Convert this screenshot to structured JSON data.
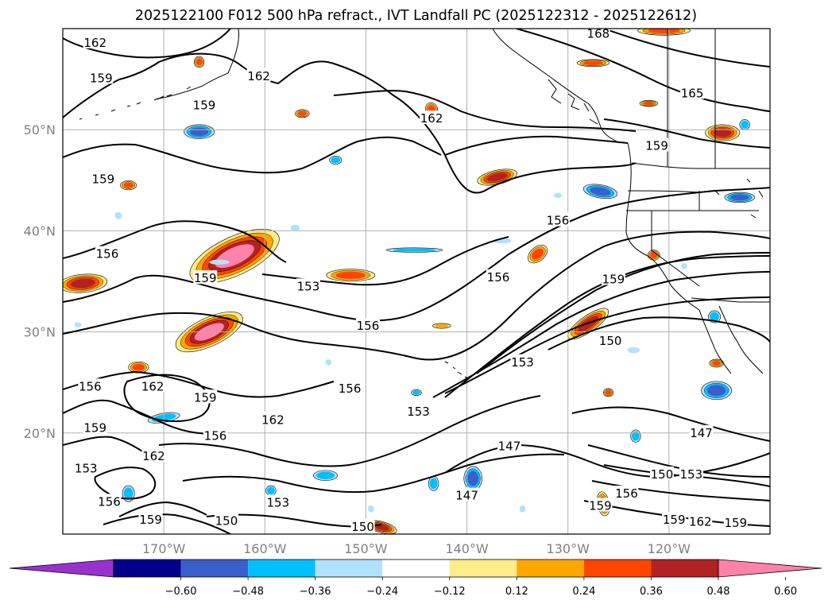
{
  "title": "2025122100 F012 500 hPa refract., IVT Landfall PC (2025122312 - 2025122612)",
  "map": {
    "lon_range": [
      -180,
      -110
    ],
    "lat_range": [
      10,
      60
    ],
    "gridline_color": "#b0b0b0",
    "lat_ticks": [
      {
        "value": 20,
        "label": "20°N"
      },
      {
        "value": 30,
        "label": "30°N"
      },
      {
        "value": 40,
        "label": "40°N"
      },
      {
        "value": 50,
        "label": "50°N"
      }
    ],
    "lon_ticks": [
      {
        "value": -170,
        "label": "170°W"
      },
      {
        "value": -160,
        "label": "160°W"
      },
      {
        "value": -150,
        "label": "150°W"
      },
      {
        "value": -140,
        "label": "140°W"
      },
      {
        "value": -130,
        "label": "130°W"
      },
      {
        "value": -120,
        "label": "120°W"
      }
    ],
    "contour_labels": [
      {
        "text": "162",
        "lon": -176.8,
        "lat": 58.6
      },
      {
        "text": "159",
        "lon": -176.2,
        "lat": 55.1
      },
      {
        "text": "159",
        "lon": -166.0,
        "lat": 52.4
      },
      {
        "text": "159",
        "lon": -176.0,
        "lat": 45.1
      },
      {
        "text": "156",
        "lon": -175.6,
        "lat": 37.7
      },
      {
        "text": "159",
        "lon": -165.9,
        "lat": 35.3
      },
      {
        "text": "153",
        "lon": -155.7,
        "lat": 34.5
      },
      {
        "text": "156",
        "lon": -149.8,
        "lat": 30.6
      },
      {
        "text": "156",
        "lon": -136.9,
        "lat": 35.4
      },
      {
        "text": "162",
        "lon": -143.5,
        "lat": 51.1
      },
      {
        "text": "156",
        "lon": -131.0,
        "lat": 41.0
      },
      {
        "text": "168",
        "lon": -127.0,
        "lat": 59.5
      },
      {
        "text": "165",
        "lon": -117.7,
        "lat": 53.6
      },
      {
        "text": "159",
        "lon": -125.5,
        "lat": 35.2
      },
      {
        "text": "150",
        "lon": -125.8,
        "lat": 29.1
      },
      {
        "text": "153",
        "lon": -134.5,
        "lat": 27.0
      },
      {
        "text": "156",
        "lon": -151.6,
        "lat": 24.4
      },
      {
        "text": "153",
        "lon": -144.8,
        "lat": 22.1
      },
      {
        "text": "162",
        "lon": -171.1,
        "lat": 24.6
      },
      {
        "text": "156",
        "lon": -177.3,
        "lat": 24.6
      },
      {
        "text": "159",
        "lon": -165.9,
        "lat": 23.5
      },
      {
        "text": "162",
        "lon": -159.2,
        "lat": 21.3
      },
      {
        "text": "159",
        "lon": -176.8,
        "lat": 20.5
      },
      {
        "text": "156",
        "lon": -164.9,
        "lat": 19.7
      },
      {
        "text": "162",
        "lon": -171.0,
        "lat": 17.7
      },
      {
        "text": "153",
        "lon": -177.7,
        "lat": 16.5
      },
      {
        "text": "156",
        "lon": -175.4,
        "lat": 13.2
      },
      {
        "text": "153",
        "lon": -158.7,
        "lat": 13.1
      },
      {
        "text": "159",
        "lon": -171.3,
        "lat": 11.4
      },
      {
        "text": "150",
        "lon": -163.8,
        "lat": 11.3
      },
      {
        "text": "150",
        "lon": -150.3,
        "lat": 10.7
      },
      {
        "text": "147",
        "lon": -140.0,
        "lat": 13.8
      },
      {
        "text": "147",
        "lon": -135.8,
        "lat": 18.7
      },
      {
        "text": "147",
        "lon": -116.8,
        "lat": 20.0
      },
      {
        "text": "150",
        "lon": -120.7,
        "lat": 15.9
      },
      {
        "text": "153",
        "lon": -117.8,
        "lat": 15.9
      },
      {
        "text": "156",
        "lon": -124.2,
        "lat": 14.0
      },
      {
        "text": "159",
        "lon": -126.8,
        "lat": 12.8
      },
      {
        "text": "159",
        "lon": -119.5,
        "lat": 11.4
      },
      {
        "text": "162",
        "lon": -116.9,
        "lat": 11.2
      },
      {
        "text": "159",
        "lon": -113.4,
        "lat": 11.1
      },
      {
        "text": "159",
        "lon": -121.2,
        "lat": 48.4
      },
      {
        "text": "162",
        "lon": -160.6,
        "lat": 55.3
      }
    ]
  },
  "colorbar": {
    "colors": [
      "#9932cc",
      "#00008b",
      "#3a5fcd",
      "#00bfff",
      "#b0e2ff",
      "#ffffff",
      "#ffec8b",
      "#ffa500",
      "#ff4500",
      "#b22222",
      "#ff82ab"
    ],
    "tick_labels": [
      "−0.60",
      "−0.48",
      "−0.36",
      "−0.24",
      "−0.12",
      "0.12",
      "0.24",
      "0.36",
      "0.48",
      "0.60"
    ]
  },
  "shaded_areas": [
    {
      "sign": "pos",
      "level": 5,
      "lon": -163.0,
      "lat": 37.5,
      "rx": 4.8,
      "ry": 1.9,
      "rot": 25
    },
    {
      "sign": "pos",
      "level": 5,
      "lon": -165.5,
      "lat": 30.0,
      "rx": 3.6,
      "ry": 1.4,
      "rot": 25
    },
    {
      "sign": "pos",
      "level": 4,
      "lon": -178.0,
      "lat": 34.8,
      "rx": 2.4,
      "ry": 0.9,
      "rot": 5
    },
    {
      "sign": "pos",
      "level": 3,
      "lon": -151.5,
      "lat": 35.6,
      "rx": 2.4,
      "ry": 0.6,
      "rot": 0
    },
    {
      "sign": "pos",
      "level": 4,
      "lon": -128.0,
      "lat": 30.8,
      "rx": 2.4,
      "ry": 0.8,
      "rot": 35
    },
    {
      "sign": "pos",
      "level": 4,
      "lon": -137.0,
      "lat": 45.3,
      "rx": 2.0,
      "ry": 0.7,
      "rot": 12
    },
    {
      "sign": "pos",
      "level": 4,
      "lon": -114.7,
      "lat": 49.7,
      "rx": 1.7,
      "ry": 0.8,
      "rot": 0
    },
    {
      "sign": "pos",
      "level": 3,
      "lon": -127.5,
      "lat": 56.6,
      "rx": 1.6,
      "ry": 0.35,
      "rot": 0
    },
    {
      "sign": "pos",
      "level": 3,
      "lon": -120.5,
      "lat": 59.8,
      "rx": 2.6,
      "ry": 0.45,
      "rot": 0
    },
    {
      "sign": "pos",
      "level": 4,
      "lon": -148.5,
      "lat": 10.7,
      "rx": 1.6,
      "ry": 0.55,
      "rot": -15
    },
    {
      "sign": "pos",
      "level": 3,
      "lon": -172.5,
      "lat": 26.5,
      "rx": 1.0,
      "ry": 0.55,
      "rot": 0
    },
    {
      "sign": "pos",
      "level": 3,
      "lon": -173.5,
      "lat": 44.5,
      "rx": 0.8,
      "ry": 0.45,
      "rot": 0
    },
    {
      "sign": "pos",
      "level": 3,
      "lon": -156.3,
      "lat": 51.6,
      "rx": 0.7,
      "ry": 0.4,
      "rot": 0
    },
    {
      "sign": "pos",
      "level": 3,
      "lon": -166.5,
      "lat": 56.7,
      "rx": 0.5,
      "ry": 0.55,
      "rot": 0
    },
    {
      "sign": "pos",
      "level": 3,
      "lon": -133.0,
      "lat": 37.7,
      "rx": 1.1,
      "ry": 0.7,
      "rot": 40
    },
    {
      "sign": "pos",
      "level": 3,
      "lon": -121.5,
      "lat": 37.6,
      "rx": 0.6,
      "ry": 0.5,
      "rot": 0
    },
    {
      "sign": "pos",
      "level": 3,
      "lon": -115.3,
      "lat": 26.9,
      "rx": 0.7,
      "ry": 0.4,
      "rot": 0
    },
    {
      "sign": "pos",
      "level": 3,
      "lon": -126.5,
      "lat": 13.0,
      "rx": 0.6,
      "ry": 1.2,
      "rot": 10
    },
    {
      "sign": "pos",
      "level": 3,
      "lon": -143.5,
      "lat": 52.0,
      "rx": 0.6,
      "ry": 0.7,
      "rot": 20
    },
    {
      "sign": "pos",
      "level": 2,
      "lon": -142.5,
      "lat": 30.6,
      "rx": 0.9,
      "ry": 0.25,
      "rot": 0
    },
    {
      "sign": "pos",
      "level": 3,
      "lon": -122.0,
      "lat": 52.6,
      "rx": 0.9,
      "ry": 0.3,
      "rot": 0
    },
    {
      "sign": "pos",
      "level": 3,
      "lon": -126.0,
      "lat": 24.0,
      "rx": 0.5,
      "ry": 0.4,
      "rot": 0
    },
    {
      "sign": "neg",
      "level": 3,
      "lon": -166.5,
      "lat": 49.8,
      "rx": 1.5,
      "ry": 0.7,
      "rot": 0
    },
    {
      "sign": "neg",
      "level": 3,
      "lon": -126.8,
      "lat": 43.9,
      "rx": 1.7,
      "ry": 0.65,
      "rot": -10
    },
    {
      "sign": "neg",
      "level": 3,
      "lon": -115.3,
      "lat": 24.2,
      "rx": 1.5,
      "ry": 0.9,
      "rot": 0
    },
    {
      "sign": "neg",
      "level": 3,
      "lon": -139.4,
      "lat": 15.5,
      "rx": 0.9,
      "ry": 1.2,
      "rot": 0
    },
    {
      "sign": "neg",
      "level": 3,
      "lon": -113.0,
      "lat": 43.3,
      "rx": 1.5,
      "ry": 0.5,
      "rot": 0
    },
    {
      "sign": "neg",
      "level": 2,
      "lon": -170.0,
      "lat": 21.5,
      "rx": 1.6,
      "ry": 0.45,
      "rot": 10
    },
    {
      "sign": "neg",
      "level": 2,
      "lon": -145.2,
      "lat": 38.1,
      "rx": 2.8,
      "ry": 0.22,
      "rot": 0
    },
    {
      "sign": "neg",
      "level": 2,
      "lon": -153.0,
      "lat": 47.0,
      "rx": 0.6,
      "ry": 0.4,
      "rot": 0
    },
    {
      "sign": "neg",
      "level": 2,
      "lon": -154.0,
      "lat": 15.8,
      "rx": 1.2,
      "ry": 0.5,
      "rot": 0
    },
    {
      "sign": "neg",
      "level": 2,
      "lon": -173.5,
      "lat": 14.0,
      "rx": 0.6,
      "ry": 0.8,
      "rot": 0
    },
    {
      "sign": "neg",
      "level": 2,
      "lon": -143.3,
      "lat": 15.0,
      "rx": 0.5,
      "ry": 0.7,
      "rot": 0
    },
    {
      "sign": "neg",
      "level": 2,
      "lon": -159.4,
      "lat": 14.3,
      "rx": 0.5,
      "ry": 0.5,
      "rot": 0
    },
    {
      "sign": "neg",
      "level": 2,
      "lon": -112.5,
      "lat": 50.5,
      "rx": 0.5,
      "ry": 0.5,
      "rot": 0
    },
    {
      "sign": "neg",
      "level": 2,
      "lon": -115.5,
      "lat": 31.5,
      "rx": 0.6,
      "ry": 0.6,
      "rot": 0
    },
    {
      "sign": "neg",
      "level": 2,
      "lon": -123.3,
      "lat": 19.7,
      "rx": 0.5,
      "ry": 0.6,
      "rot": 0
    },
    {
      "sign": "neg",
      "level": 2,
      "lon": -145.0,
      "lat": 24.0,
      "rx": 0.5,
      "ry": 0.3,
      "rot": 0
    },
    {
      "sign": "neg",
      "level": 1,
      "lon": -164.5,
      "lat": 36.9,
      "rx": 1.0,
      "ry": 0.25,
      "rot": 0
    },
    {
      "sign": "neg",
      "level": 1,
      "lon": -174.5,
      "lat": 41.5,
      "rx": 0.35,
      "ry": 0.35,
      "rot": 0
    },
    {
      "sign": "neg",
      "level": 1,
      "lon": -157.0,
      "lat": 40.3,
      "rx": 0.45,
      "ry": 0.3,
      "rot": 0
    },
    {
      "sign": "neg",
      "level": 1,
      "lon": -136.5,
      "lat": 39.0,
      "rx": 0.9,
      "ry": 0.25,
      "rot": 0
    },
    {
      "sign": "neg",
      "level": 1,
      "lon": -153.7,
      "lat": 27.0,
      "rx": 0.3,
      "ry": 0.3,
      "rot": 0
    },
    {
      "sign": "neg",
      "level": 1,
      "lon": -149.5,
      "lat": 12.5,
      "rx": 0.3,
      "ry": 0.35,
      "rot": 0
    },
    {
      "sign": "neg",
      "level": 1,
      "lon": -134.5,
      "lat": 12.5,
      "rx": 0.3,
      "ry": 0.35,
      "rot": 0
    },
    {
      "sign": "neg",
      "level": 1,
      "lon": -118.5,
      "lat": 36.5,
      "rx": 0.3,
      "ry": 0.3,
      "rot": 0
    },
    {
      "sign": "neg",
      "level": 1,
      "lon": -123.5,
      "lat": 28.2,
      "rx": 0.6,
      "ry": 0.3,
      "rot": 0
    },
    {
      "sign": "neg",
      "level": 1,
      "lon": -131.0,
      "lat": 43.5,
      "rx": 0.4,
      "ry": 0.25,
      "rot": 0
    },
    {
      "sign": "neg",
      "level": 1,
      "lon": -178.5,
      "lat": 30.7,
      "rx": 0.35,
      "ry": 0.25,
      "rot": 0
    }
  ]
}
